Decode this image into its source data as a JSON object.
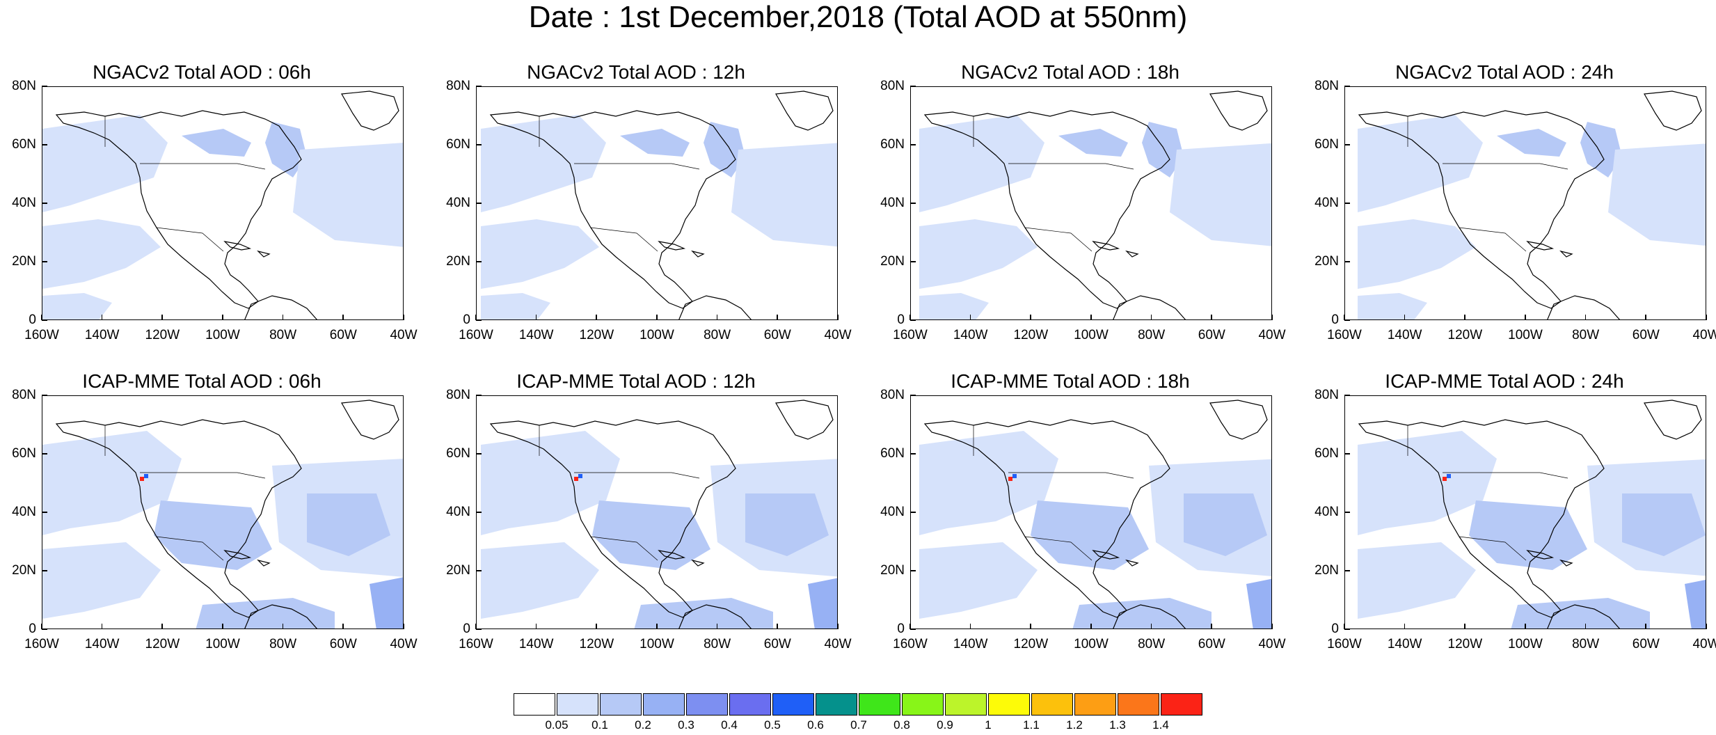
{
  "title": "Date : 1st December,2018 (Total AOD at 550nm)",
  "lat_ticks": [
    "80N",
    "60N",
    "40N",
    "20N",
    "0"
  ],
  "lon_ticks": [
    "160W",
    "140W",
    "120W",
    "100W",
    "80W",
    "60W",
    "40W"
  ],
  "panels": [
    {
      "title": "NGACv2 Total AOD : 06h",
      "model": "NGACv2",
      "hour": "06h"
    },
    {
      "title": "NGACv2 Total AOD : 12h",
      "model": "NGACv2",
      "hour": "12h"
    },
    {
      "title": "NGACv2 Total AOD : 18h",
      "model": "NGACv2",
      "hour": "18h"
    },
    {
      "title": "NGACv2 Total AOD : 24h",
      "model": "NGACv2",
      "hour": "24h"
    },
    {
      "title": "ICAP-MME Total AOD : 06h",
      "model": "ICAP-MME",
      "hour": "06h"
    },
    {
      "title": "ICAP-MME Total AOD : 12h",
      "model": "ICAP-MME",
      "hour": "12h"
    },
    {
      "title": "ICAP-MME Total AOD : 18h",
      "model": "ICAP-MME",
      "hour": "18h"
    },
    {
      "title": "ICAP-MME Total AOD : 24h",
      "model": "ICAP-MME",
      "hour": "24h"
    }
  ],
  "colorbar": {
    "colors": [
      "#ffffff",
      "#d6e2fb",
      "#b6c9f6",
      "#97b1f4",
      "#7d8ff1",
      "#6a6ef0",
      "#1f5ff7",
      "#05918c",
      "#3fe61a",
      "#88f518",
      "#bcf42a",
      "#fdfb08",
      "#fcc10c",
      "#fd9e14",
      "#fb761a",
      "#fb2316"
    ],
    "labels": [
      "0.05",
      "0.1",
      "0.2",
      "0.3",
      "0.4",
      "0.5",
      "0.6",
      "0.7",
      "0.8",
      "0.9",
      "1",
      "1.1",
      "1.2",
      "1.3",
      "1.4"
    ]
  },
  "map_colors": {
    "light": "#d6e2fb",
    "medium": "#b6c9f6",
    "darker": "#97b1f4",
    "coast": "#000000"
  }
}
